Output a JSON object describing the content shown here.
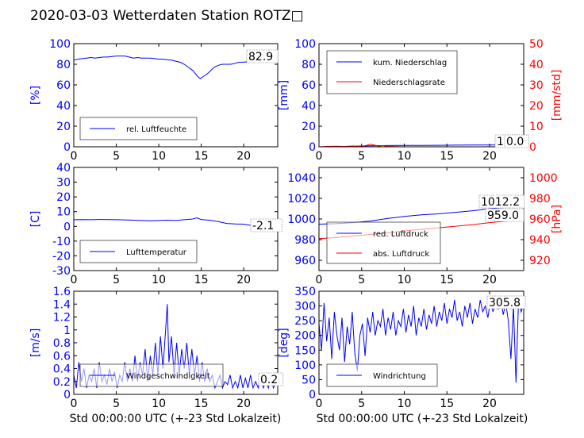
{
  "title": "2020-03-03 Wetterdaten Station ROTZ□",
  "colors": {
    "blue": "#0000ff",
    "red": "#ff0000"
  },
  "chart_data": [
    {
      "id": "humidity",
      "type": "line",
      "ylabel": "[%]",
      "xlim": [
        0,
        24
      ],
      "ylim": [
        0,
        100
      ],
      "xticks": [
        0,
        5,
        10,
        15,
        20
      ],
      "yticks": [
        0,
        20,
        40,
        60,
        80,
        100
      ],
      "series": [
        {
          "name": "rel. Luftfeuchte",
          "color": "#0000ff",
          "x": [
            0,
            0.5,
            1,
            1.5,
            2,
            2.5,
            3,
            3.5,
            4,
            4.5,
            5,
            5.5,
            6,
            6.5,
            7,
            7.5,
            8,
            8.5,
            9,
            9.5,
            10,
            10.5,
            11,
            11.5,
            12,
            12.5,
            13,
            13.5,
            14,
            14.3,
            14.6,
            14.9,
            15.2,
            15.6,
            16,
            16.5,
            17,
            17.5,
            18,
            18.5,
            19,
            19.5,
            20,
            20.5,
            21,
            21.5,
            22,
            22.5,
            23,
            23.5,
            24
          ],
          "y": [
            84,
            85,
            85.5,
            86,
            86.5,
            86,
            86.5,
            87,
            87,
            87.5,
            88,
            88,
            88,
            87,
            86,
            86.5,
            86,
            86,
            86,
            85.5,
            85,
            85,
            84.5,
            84,
            83,
            82,
            80,
            77,
            74,
            71,
            68,
            66,
            68,
            70,
            73,
            77,
            79,
            80,
            80,
            80,
            81,
            82,
            82,
            82.5,
            82.5,
            83,
            83,
            83,
            83,
            82.9,
            82.9
          ]
        }
      ],
      "annotation": "82.9"
    },
    {
      "id": "precip",
      "type": "line",
      "ylabel": "[mm]",
      "ylabel2": "[mm/std]",
      "xlim": [
        0,
        24
      ],
      "ylim": [
        0,
        100
      ],
      "ylim2": [
        0,
        50
      ],
      "xticks": [
        0,
        5,
        10,
        15,
        20
      ],
      "yticks": [
        0,
        20,
        40,
        60,
        80,
        100
      ],
      "yticks2": [
        0,
        10,
        20,
        30,
        40,
        50
      ],
      "series": [
        {
          "name": "kum. Niederschlag",
          "color": "#0000ff",
          "axis": "left",
          "x": [
            0,
            2,
            4,
            5,
            6,
            7,
            8,
            10,
            12,
            14,
            16,
            18,
            20,
            22,
            24
          ],
          "y": [
            0,
            0.2,
            0.5,
            0.8,
            1,
            1.1,
            1.2,
            1.3,
            1.4,
            1.5,
            1.6,
            1.7,
            1.8,
            1.9,
            1.0
          ]
        },
        {
          "name": "Niederschlagsrate",
          "color": "#ff0000",
          "axis": "right",
          "x": [
            0,
            1,
            2,
            3,
            4,
            5,
            5.5,
            6,
            6.5,
            7,
            7.5,
            8,
            9,
            10,
            12,
            14,
            16,
            18,
            20,
            22,
            24
          ],
          "y": [
            0,
            0.2,
            0.3,
            0.2,
            0.4,
            0.3,
            0.6,
            1.2,
            0.8,
            0.3,
            0.6,
            0.2,
            0.1,
            0,
            0,
            0,
            0,
            0,
            0,
            0,
            0
          ]
        }
      ],
      "annotations": [
        "1.0",
        "0.0"
      ]
    },
    {
      "id": "temperature",
      "type": "line",
      "ylabel": "[C]",
      "xlim": [
        0,
        24
      ],
      "ylim": [
        -30,
        40
      ],
      "xticks": [
        0,
        5,
        10,
        15,
        20
      ],
      "yticks": [
        -30,
        -20,
        -10,
        0,
        10,
        20,
        30,
        40
      ],
      "series": [
        {
          "name": "Lufttemperatur",
          "color": "#0000ff",
          "x": [
            0,
            1,
            2,
            3,
            4,
            5,
            6,
            7,
            8,
            9,
            10,
            11,
            12,
            13,
            14,
            14.5,
            15,
            16,
            17,
            18,
            19,
            20,
            21,
            22,
            23,
            24
          ],
          "y": [
            4.5,
            4.6,
            4.5,
            4.7,
            4.6,
            4.5,
            4.4,
            4.2,
            4.0,
            3.8,
            4.0,
            4.2,
            4.0,
            4.5,
            5.0,
            5.8,
            4.6,
            4.2,
            3.2,
            2.0,
            1.6,
            1.5,
            0.5,
            -0.8,
            -1.8,
            -2.1
          ]
        }
      ],
      "annotation": "-2.1"
    },
    {
      "id": "pressure",
      "type": "line",
      "ylabel2": "[hPa]",
      "xlim": [
        0,
        24
      ],
      "ylim": [
        950,
        1050
      ],
      "ylim2": [
        910,
        1010
      ],
      "xticks": [
        0,
        5,
        10,
        15,
        20
      ],
      "yticks": [
        960,
        980,
        1000,
        1020,
        1040
      ],
      "yticks2": [
        920,
        940,
        960,
        980,
        1000
      ],
      "series": [
        {
          "name": "red. Luftdruck",
          "color": "#0000ff",
          "axis": "left",
          "x": [
            0,
            2,
            4,
            6,
            8,
            10,
            12,
            14,
            16,
            18,
            20,
            22,
            24
          ],
          "y": [
            995,
            995.5,
            996.5,
            998,
            1000.5,
            1002.5,
            1004,
            1005,
            1006.5,
            1008,
            1010,
            1011.5,
            1012.2
          ]
        },
        {
          "name": "abs. Luftdruck",
          "color": "#ff0000",
          "axis": "right",
          "x": [
            0,
            2,
            4,
            6,
            8,
            10,
            12,
            14,
            16,
            18,
            20,
            22,
            24
          ],
          "y": [
            941,
            942,
            943.5,
            945,
            946.5,
            948.5,
            950,
            951.5,
            953,
            954.5,
            956.5,
            958,
            959
          ]
        }
      ],
      "annotations": [
        "1012.2",
        "959.0"
      ]
    },
    {
      "id": "wind",
      "type": "line",
      "ylabel": "[m/s]",
      "xlim": [
        0,
        24
      ],
      "ylim": [
        0,
        1.6
      ],
      "xticks": [
        0,
        5,
        10,
        15,
        20
      ],
      "yticks": [
        0,
        0.2,
        0.4,
        0.6,
        0.8,
        1.0,
        1.2,
        1.4,
        1.6
      ],
      "series": [
        {
          "name": "Windgeschwindigkeit",
          "color": "#0000ff",
          "x": [
            0,
            0.3,
            0.6,
            0.9,
            1.2,
            1.5,
            1.8,
            2.1,
            2.4,
            2.7,
            3,
            3.3,
            3.6,
            3.9,
            4.2,
            4.5,
            4.8,
            5.1,
            5.4,
            5.7,
            6,
            6.3,
            6.6,
            6.9,
            7.2,
            7.5,
            7.8,
            8.1,
            8.4,
            8.7,
            9,
            9.3,
            9.6,
            9.9,
            10.2,
            10.5,
            10.8,
            11,
            11.2,
            11.5,
            11.8,
            12.1,
            12.4,
            12.7,
            13,
            13.3,
            13.6,
            13.9,
            14.2,
            14.5,
            14.8,
            15.1,
            15.4,
            15.7,
            16,
            16.3,
            16.6,
            16.9,
            17.2,
            17.5,
            17.8,
            18.1,
            18.4,
            18.7,
            19,
            19.3,
            19.6,
            19.9,
            20.2,
            20.5,
            20.8,
            21.1,
            21.4,
            21.7,
            22,
            22.3,
            22.6,
            22.9,
            23.2,
            23.5,
            23.8,
            24
          ],
          "y": [
            0.3,
            0.1,
            0.5,
            0.2,
            0.4,
            0.1,
            0.3,
            0.2,
            0.4,
            0.1,
            0.5,
            0.2,
            0.3,
            0.15,
            0.4,
            0.2,
            0.35,
            0.1,
            0.3,
            0.2,
            0.5,
            0.2,
            0.4,
            0.2,
            0.6,
            0.2,
            0.5,
            0.3,
            0.7,
            0.2,
            0.6,
            0.3,
            0.8,
            0.3,
            0.9,
            0.4,
            1.0,
            1.4,
            0.5,
            0.9,
            0.3,
            0.8,
            0.3,
            0.7,
            0.4,
            0.8,
            0.3,
            0.7,
            0.3,
            0.6,
            0.2,
            0.5,
            0.2,
            0.4,
            0.2,
            0.3,
            0.1,
            0.2,
            0.3,
            0.1,
            0.2,
            0.15,
            0.3,
            0.1,
            0.2,
            0.1,
            0.3,
            0.1,
            0.25,
            0.1,
            0.3,
            0.1,
            0.2,
            0.1,
            0.3,
            0.1,
            0.2,
            0.1,
            0.25,
            0.1,
            0.2,
            0.2
          ]
        }
      ],
      "annotation": "0.2"
    },
    {
      "id": "direction",
      "type": "line",
      "ylabel": "[deg]",
      "xlim": [
        0,
        24
      ],
      "ylim": [
        0,
        350
      ],
      "xticks": [
        0,
        5,
        10,
        15,
        20
      ],
      "yticks": [
        0,
        50,
        100,
        150,
        200,
        250,
        300,
        350
      ],
      "series": [
        {
          "name": "Windrichtung",
          "color": "#0000ff",
          "x": [
            0,
            0.3,
            0.6,
            0.9,
            1.2,
            1.5,
            1.8,
            2.1,
            2.4,
            2.7,
            3,
            3.3,
            3.6,
            3.9,
            4.2,
            4.5,
            4.8,
            5.1,
            5.4,
            5.7,
            6,
            6.3,
            6.6,
            6.9,
            7.2,
            7.5,
            7.8,
            8.1,
            8.4,
            8.7,
            9,
            9.3,
            9.6,
            9.9,
            10.2,
            10.5,
            10.8,
            11.1,
            11.4,
            11.7,
            12,
            12.3,
            12.6,
            12.9,
            13.2,
            13.5,
            13.8,
            14.1,
            14.4,
            14.7,
            15,
            15.3,
            15.6,
            15.9,
            16.2,
            16.5,
            16.8,
            17.1,
            17.4,
            17.7,
            18,
            18.3,
            18.6,
            18.9,
            19.2,
            19.5,
            19.8,
            20.1,
            20.4,
            20.7,
            21,
            21.3,
            21.6,
            21.9,
            22.2,
            22.5,
            22.8,
            23.1,
            23.4,
            23.7,
            24
          ],
          "y": [
            240,
            150,
            310,
            180,
            260,
            120,
            280,
            200,
            150,
            260,
            110,
            230,
            170,
            280,
            140,
            80,
            200,
            240,
            130,
            260,
            210,
            280,
            200,
            250,
            230,
            290,
            200,
            260,
            220,
            280,
            200,
            250,
            230,
            290,
            210,
            270,
            230,
            300,
            200,
            260,
            230,
            290,
            220,
            270,
            240,
            300,
            230,
            280,
            250,
            310,
            240,
            290,
            260,
            320,
            250,
            280,
            230,
            300,
            260,
            310,
            240,
            290,
            260,
            320,
            280,
            300,
            260,
            320,
            280,
            310,
            290,
            330,
            270,
            310,
            250,
            120,
            300,
            40,
            320,
            280,
            306
          ]
        }
      ],
      "annotation": "305.8"
    }
  ],
  "xlabel": "Std 00:00:00 UTC (+-23 Std Lokalzeit)"
}
